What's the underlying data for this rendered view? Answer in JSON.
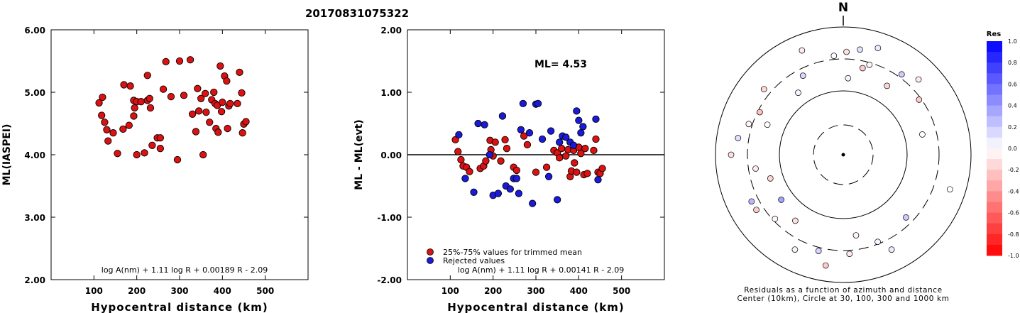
{
  "header": {
    "event_id": "20170831075322"
  },
  "chart_data": [
    {
      "type": "scatter",
      "ylabel": "ML(IASPEI)",
      "xlabel": "Hypocentral distance (km)",
      "xlim": [
        0,
        600
      ],
      "ylim": [
        2.0,
        6.0
      ],
      "xticks": [
        "100",
        "200",
        "300",
        "400",
        "500"
      ],
      "yticks": [
        "2.00",
        "3.00",
        "4.00",
        "5.00",
        "6.00"
      ],
      "formula": "log A(nm) + 1.11 log R + 0.00189 R - 2.09",
      "grid": false,
      "series": [
        {
          "color": "#dd1111",
          "points": [
            [
              112,
              4.83
            ],
            [
              118,
              4.63
            ],
            [
              120,
              4.92
            ],
            [
              125,
              4.52
            ],
            [
              130,
              4.4
            ],
            [
              133,
              4.22
            ],
            [
              145,
              4.35
            ],
            [
              155,
              4.02
            ],
            [
              168,
              4.41
            ],
            [
              170,
              5.12
            ],
            [
              182,
              4.47
            ],
            [
              185,
              5.1
            ],
            [
              193,
              4.87
            ],
            [
              193,
              4.62
            ],
            [
              195,
              4.75
            ],
            [
              200,
              4.85
            ],
            [
              200,
              4.0
            ],
            [
              210,
              4.85
            ],
            [
              218,
              4.03
            ],
            [
              225,
              4.87
            ],
            [
              225,
              5.27
            ],
            [
              230,
              4.9
            ],
            [
              232,
              4.75
            ],
            [
              236,
              4.15
            ],
            [
              248,
              4.27
            ],
            [
              255,
              4.27
            ],
            [
              255,
              4.1
            ],
            [
              262,
              5.05
            ],
            [
              268,
              5.49
            ],
            [
              280,
              4.93
            ],
            [
              295,
              3.92
            ],
            [
              300,
              5.5
            ],
            [
              310,
              4.95
            ],
            [
              325,
              5.52
            ],
            [
              330,
              4.65
            ],
            [
              338,
              4.37
            ],
            [
              342,
              5.06
            ],
            [
              345,
              4.7
            ],
            [
              350,
              4.9
            ],
            [
              355,
              4.0
            ],
            [
              360,
              4.98
            ],
            [
              362,
              4.68
            ],
            [
              370,
              4.52
            ],
            [
              375,
              4.88
            ],
            [
              380,
              5.0
            ],
            [
              383,
              4.82
            ],
            [
              385,
              4.42
            ],
            [
              388,
              4.79
            ],
            [
              390,
              4.36
            ],
            [
              395,
              5.42
            ],
            [
              398,
              4.69
            ],
            [
              400,
              4.84
            ],
            [
              405,
              5.26
            ],
            [
              410,
              5.18
            ],
            [
              412,
              4.42
            ],
            [
              415,
              4.78
            ],
            [
              418,
              4.82
            ],
            [
              435,
              4.82
            ],
            [
              440,
              5.32
            ],
            [
              445,
              4.99
            ],
            [
              447,
              4.35
            ],
            [
              450,
              4.49
            ],
            [
              455,
              4.53
            ]
          ]
        }
      ]
    },
    {
      "type": "scatter",
      "ylabel": "ML - ML(evt)",
      "xlabel": "Hypocentral distance (km)",
      "xlim": [
        0,
        600
      ],
      "ylim": [
        -2.0,
        2.0
      ],
      "xticks": [
        "100",
        "200",
        "300",
        "400",
        "500"
      ],
      "yticks": [
        "-2.00",
        "-1.00",
        "0.00",
        "1.00",
        "2.00"
      ],
      "annotation": "ML= 4.53",
      "legend": {
        "placement": "bottom-left",
        "entries": [
          "25%-75% values for trimmed mean",
          "Rejected values"
        ],
        "colors": [
          "#dd1111",
          "#1a1add"
        ]
      },
      "formula": "log A(nm) + 1.11 log R + 0.00141 R - 2.09",
      "series": [
        {
          "name": "25%-75% values for trimmed mean",
          "color": "#dd1111",
          "points": [
            [
              112,
              0.24
            ],
            [
              118,
              0.05
            ],
            [
              125,
              -0.08
            ],
            [
              130,
              -0.18
            ],
            [
              138,
              -0.2
            ],
            [
              145,
              -0.27
            ],
            [
              170,
              -0.22
            ],
            [
              178,
              -0.18
            ],
            [
              183,
              -0.1
            ],
            [
              193,
              0.23
            ],
            [
              195,
              0.08
            ],
            [
              200,
              -0.02
            ],
            [
              205,
              0.2
            ],
            [
              218,
              -0.1
            ],
            [
              228,
              0.24
            ],
            [
              232,
              0.1
            ],
            [
              248,
              -0.2
            ],
            [
              255,
              -0.25
            ],
            [
              272,
              0.3
            ],
            [
              280,
              0.16
            ],
            [
              300,
              -0.28
            ],
            [
              325,
              -0.2
            ],
            [
              342,
              0.07
            ],
            [
              350,
              0.03
            ],
            [
              355,
              -0.05
            ],
            [
              360,
              0.1
            ],
            [
              370,
              -0.02
            ],
            [
              375,
              0.08
            ],
            [
              380,
              -0.35
            ],
            [
              383,
              -0.26
            ],
            [
              388,
              0.07
            ],
            [
              390,
              -0.13
            ],
            [
              395,
              -0.28
            ],
            [
              400,
              0.12
            ],
            [
              405,
              0.02
            ],
            [
              412,
              -0.32
            ],
            [
              415,
              0.1
            ],
            [
              420,
              -0.3
            ],
            [
              435,
              0.07
            ],
            [
              440,
              0.25
            ],
            [
              445,
              -0.28
            ],
            [
              450,
              -0.3
            ],
            [
              455,
              -0.22
            ]
          ]
        },
        {
          "name": "Rejected values",
          "color": "#1a1add",
          "points": [
            [
              120,
              0.32
            ],
            [
              135,
              -0.38
            ],
            [
              155,
              -0.6
            ],
            [
              165,
              0.5
            ],
            [
              180,
              0.48
            ],
            [
              192,
              0.0
            ],
            [
              200,
              -0.65
            ],
            [
              212,
              -0.62
            ],
            [
              222,
              0.62
            ],
            [
              230,
              -0.5
            ],
            [
              240,
              -0.55
            ],
            [
              248,
              -0.38
            ],
            [
              255,
              -0.38
            ],
            [
              260,
              -0.62
            ],
            [
              265,
              0.4
            ],
            [
              270,
              0.82
            ],
            [
              285,
              0.35
            ],
            [
              292,
              -0.78
            ],
            [
              300,
              0.81
            ],
            [
              305,
              0.82
            ],
            [
              315,
              0.25
            ],
            [
              330,
              -0.35
            ],
            [
              335,
              0.38
            ],
            [
              350,
              -0.72
            ],
            [
              355,
              0.2
            ],
            [
              362,
              0.3
            ],
            [
              370,
              0.28
            ],
            [
              380,
              0.2
            ],
            [
              388,
              0.15
            ],
            [
              395,
              0.7
            ],
            [
              400,
              0.55
            ],
            [
              405,
              0.35
            ],
            [
              410,
              0.45
            ],
            [
              440,
              0.57
            ],
            [
              445,
              -0.4
            ]
          ]
        }
      ]
    },
    {
      "type": "scatter",
      "title": "N",
      "caption_line1": "Residuals as a function of azimuth and distance",
      "caption_line2": "Center (10km), Circle at 30, 100, 300 and 1000 km",
      "colorbar": {
        "title": "Res",
        "ticks": [
          "1.0",
          "0.8",
          "0.6",
          "0.4",
          "0.2",
          "0.0",
          "-0.2",
          "-0.4",
          "-0.6",
          "-0.8",
          "-1.0"
        ],
        "range": [
          -1.0,
          1.0
        ]
      },
      "series": [
        {
          "points": [
            [
              0.3,
              0.3
            ],
            [
              0.35,
              0.42
            ],
            [
              0.33,
              0.25
            ],
            [
              0.4,
              0.2
            ],
            [
              0.37,
              0.1
            ],
            [
              0.3,
              0.07
            ],
            [
              0.36,
              0.02
            ],
            [
              0.32,
              0.01
            ],
            [
              0.34,
              0.09
            ],
            [
              0.31,
              0.18
            ],
            [
              0.38,
              0.05
            ],
            [
              0.35,
              -0.03
            ],
            [
              0.33,
              -0.12
            ],
            [
              0.39,
              -0.15
            ],
            [
              0.36,
              -0.2
            ],
            [
              0.31,
              -0.28
            ],
            [
              0.29,
              -0.35
            ],
            [
              0.35,
              -0.38
            ],
            [
              0.38,
              -0.45
            ],
            [
              0.34,
              -0.4
            ],
            [
              0.32,
              -0.5
            ],
            [
              0.33,
              -0.55
            ],
            [
              0.31,
              -0.6
            ],
            [
              0.3,
              -0.68
            ],
            [
              0.34,
              -0.74
            ],
            [
              0.32,
              -0.8
            ],
            [
              0.36,
              -0.85
            ],
            [
              0.39,
              -0.92
            ],
            [
              0.35,
              0.6
            ],
            [
              0.4,
              0.75
            ],
            [
              0.44,
              -0.7
            ],
            [
              0.42,
              -0.65
            ],
            [
              0.36,
              0.88
            ],
            [
              0.34,
              0.95
            ],
            [
              0.37,
              0.85
            ],
            [
              0.33,
              0.98
            ],
            [
              0.3,
              -0.95
            ]
          ]
        }
      ]
    }
  ]
}
